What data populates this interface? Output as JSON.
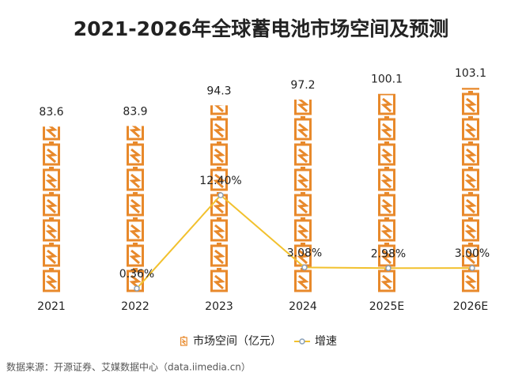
{
  "chart_data": {
    "type": "pictograph-bar-line",
    "title": "2021-2026年全球蓄电池市场空间及预测",
    "categories": [
      "2021",
      "2022",
      "2023",
      "2024",
      "2025E",
      "2026E"
    ],
    "series": [
      {
        "name": "市场空间（亿元）",
        "color": "#e8892b",
        "values": [
          83.6,
          83.9,
          94.3,
          97.2,
          100.1,
          103.1
        ]
      },
      {
        "name": "增速",
        "color": "#f2c12e",
        "axis": "y2",
        "values": [
          null,
          0.36,
          12.4,
          3.08,
          2.98,
          3.0
        ],
        "value_labels": [
          null,
          "0.36%",
          "12.40%",
          "3.08%",
          "2.98%",
          "3.00%"
        ]
      }
    ],
    "source": "数据来源：开源证券、艾媒数据中心（data.iimedia.cn）"
  }
}
